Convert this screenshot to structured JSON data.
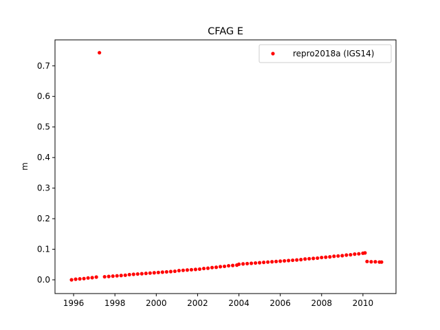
{
  "chart_data": {
    "type": "scatter",
    "title": "CFAG E",
    "xlabel": "",
    "ylabel": "m",
    "xlim": [
      1995.1,
      2011.6
    ],
    "ylim": [
      -0.045,
      0.785
    ],
    "x_ticks": [
      1996,
      1998,
      2000,
      2002,
      2004,
      2006,
      2008,
      2010
    ],
    "y_ticks": [
      0.0,
      0.1,
      0.2,
      0.3,
      0.4,
      0.5,
      0.6,
      0.7
    ],
    "y_tick_labels": [
      "0.0",
      "0.1",
      "0.2",
      "0.3",
      "0.4",
      "0.5",
      "0.6",
      "0.7"
    ],
    "grid": false,
    "legend_position": "top-right",
    "color": "#ff0000",
    "series": [
      {
        "name": "repro2018a (IGS14)",
        "color": "#ff0000",
        "x": [
          1995.9,
          1996.1,
          1996.3,
          1996.5,
          1996.7,
          1996.9,
          1997.1,
          1997.5,
          1997.7,
          1997.9,
          1998.1,
          1998.3,
          1998.5,
          1998.7,
          1998.9,
          1999.1,
          1999.3,
          1999.5,
          1999.7,
          1999.9,
          2000.1,
          2000.3,
          2000.5,
          2000.7,
          2000.9,
          2001.1,
          2001.3,
          2001.5,
          2001.7,
          2001.9,
          2002.1,
          2002.3,
          2002.5,
          2002.7,
          2002.9,
          2003.1,
          2003.3,
          2003.5,
          2003.7,
          2003.9,
          2004.0,
          2004.2,
          2004.4,
          2004.6,
          2004.8,
          2005.0,
          2005.2,
          2005.4,
          2005.6,
          2005.8,
          2006.0,
          2006.2,
          2006.4,
          2006.6,
          2006.8,
          2007.0,
          2007.2,
          2007.4,
          2007.6,
          2007.8,
          2008.0,
          2008.2,
          2008.4,
          2008.6,
          2008.8,
          2009.0,
          2009.2,
          2009.4,
          2009.6,
          2009.8,
          2010.0,
          2010.1,
          2010.2,
          2010.4,
          2010.6,
          2010.8,
          2010.9,
          1997.25
        ],
        "y": [
          0.0,
          0.002,
          0.003,
          0.004,
          0.006,
          0.007,
          0.009,
          0.01,
          0.011,
          0.012,
          0.013,
          0.014,
          0.015,
          0.017,
          0.018,
          0.019,
          0.02,
          0.021,
          0.022,
          0.023,
          0.024,
          0.025,
          0.026,
          0.027,
          0.028,
          0.03,
          0.031,
          0.032,
          0.033,
          0.034,
          0.035,
          0.037,
          0.038,
          0.04,
          0.041,
          0.043,
          0.044,
          0.046,
          0.047,
          0.048,
          0.051,
          0.052,
          0.053,
          0.054,
          0.055,
          0.056,
          0.057,
          0.058,
          0.059,
          0.06,
          0.061,
          0.062,
          0.063,
          0.064,
          0.065,
          0.066,
          0.068,
          0.069,
          0.07,
          0.071,
          0.073,
          0.074,
          0.075,
          0.077,
          0.078,
          0.079,
          0.081,
          0.082,
          0.084,
          0.085,
          0.087,
          0.088,
          0.06,
          0.059,
          0.059,
          0.058,
          0.058,
          0.743
        ]
      }
    ]
  }
}
